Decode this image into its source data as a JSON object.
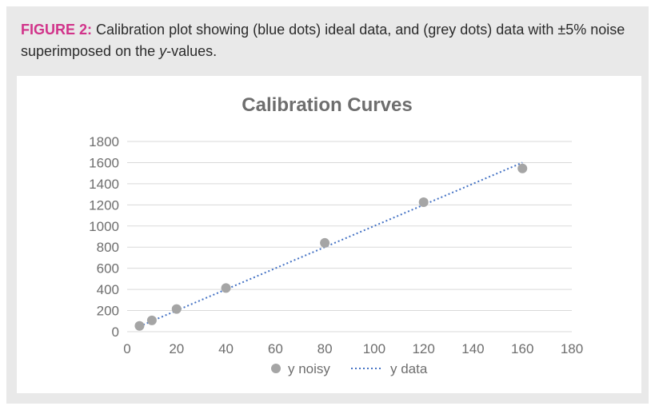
{
  "caption": {
    "label": "FIGURE 2:",
    "text_before_italic": " Calibration plot showing (blue dots) ideal data, and (grey dots) data with ±5% noise superimposed on the ",
    "italic": "y",
    "text_after_italic": "-values."
  },
  "chart_data": {
    "type": "scatter",
    "title": "Calibration Curves",
    "xlabel": "",
    "ylabel": "",
    "xlim": [
      0,
      180
    ],
    "ylim": [
      0,
      1800
    ],
    "x_ticks": [
      0,
      20,
      40,
      60,
      80,
      100,
      120,
      140,
      160,
      180
    ],
    "y_ticks": [
      0,
      200,
      400,
      600,
      800,
      1000,
      1200,
      1400,
      1600,
      1800
    ],
    "grid": true,
    "legend_position": "bottom",
    "series": [
      {
        "name": "y noisy",
        "style": "markers",
        "color": "#a5a5a5",
        "x": [
          5,
          10,
          20,
          40,
          80,
          120,
          160
        ],
        "y": [
          55,
          107,
          215,
          413,
          840,
          1225,
          1545
        ]
      },
      {
        "name": "y data",
        "style": "dotted-line",
        "color": "#4472c4",
        "x": [
          5,
          10,
          20,
          40,
          80,
          120,
          160
        ],
        "y": [
          50,
          100,
          200,
          400,
          800,
          1200,
          1600
        ]
      }
    ]
  }
}
